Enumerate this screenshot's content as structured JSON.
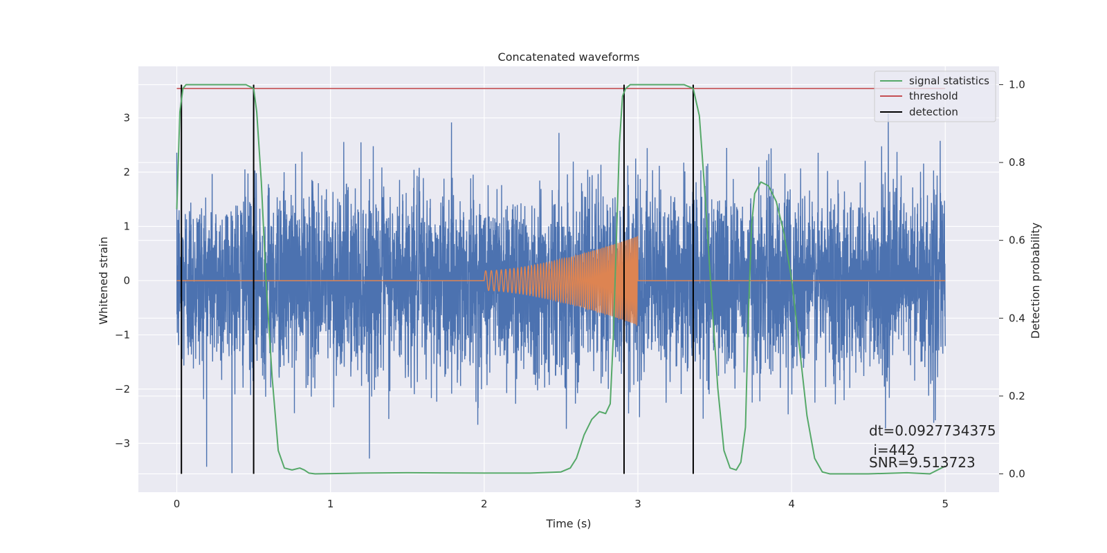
{
  "chart_data": {
    "type": "line",
    "title": "Concatenated waveforms",
    "xlabel": "Time (s)",
    "ylabel_left": "Whitened strain",
    "ylabel_right": "Detection probability",
    "xlim": [
      -0.25,
      5.35
    ],
    "ylim_left": [
      -3.9,
      3.95
    ],
    "ylim_right": [
      -0.047,
      1.047
    ],
    "xticks": [
      0,
      1,
      2,
      3,
      4,
      5
    ],
    "xtick_labels": [
      "0",
      "1",
      "2",
      "3",
      "4",
      "5"
    ],
    "yticks_left": [
      -3,
      -2,
      -1,
      0,
      1,
      2,
      3
    ],
    "ytick_labels_left": [
      "−3",
      "−2",
      "−1",
      "0",
      "1",
      "2",
      "3"
    ],
    "yticks_right": [
      0.0,
      0.2,
      0.4,
      0.6,
      0.8,
      1.0
    ],
    "ytick_labels_right": [
      "0.0",
      "0.2",
      "0.4",
      "0.6",
      "0.8",
      "1.0"
    ],
    "grid": true,
    "legend_position": "top-right",
    "legend": [
      "signal statistics",
      "threshold",
      "detection"
    ],
    "annotation_lines": [
      "dt=0.0927734375",
      " i=442",
      "SNR=9.513723"
    ],
    "series": [
      {
        "kind": "noise",
        "color": "#4c72b0",
        "axis": "left",
        "x_range": [
          0,
          5
        ],
        "typical_amplitude": 0.85,
        "peak_range": [
          -3.55,
          3.3
        ]
      },
      {
        "kind": "chirp",
        "color": "#dd8452",
        "axis": "left",
        "x_range": [
          0,
          5
        ],
        "chirp_start": 2.0,
        "chirp_end": 3.0,
        "start_amplitude": 0.18,
        "end_amplitude": 0.82,
        "start_frequency_hz": 25,
        "end_frequency_hz": 100
      },
      {
        "name": "signal statistics",
        "color": "#55a868",
        "axis": "right",
        "x": [
          0.0,
          0.02,
          0.04,
          0.06,
          0.1,
          0.45,
          0.5,
          0.52,
          0.55,
          0.58,
          0.62,
          0.66,
          0.7,
          0.75,
          0.8,
          0.83,
          0.86,
          0.9,
          1.2,
          1.5,
          2.0,
          2.3,
          2.5,
          2.56,
          2.6,
          2.65,
          2.7,
          2.75,
          2.79,
          2.82,
          2.84,
          2.86,
          2.88,
          2.9,
          2.92,
          2.95,
          3.0,
          3.3,
          3.36,
          3.4,
          3.44,
          3.48,
          3.52,
          3.56,
          3.6,
          3.64,
          3.67,
          3.7,
          3.72,
          3.74,
          3.76,
          3.8,
          3.85,
          3.9,
          3.95,
          4.0,
          4.05,
          4.1,
          4.15,
          4.2,
          4.25,
          4.5,
          4.75,
          4.9,
          5.0
        ],
        "y": [
          0.68,
          0.93,
          0.99,
          1.0,
          1.0,
          1.0,
          0.99,
          0.93,
          0.75,
          0.5,
          0.25,
          0.06,
          0.015,
          0.01,
          0.015,
          0.01,
          0.002,
          0.0,
          0.002,
          0.003,
          0.002,
          0.002,
          0.005,
          0.015,
          0.04,
          0.1,
          0.14,
          0.16,
          0.155,
          0.18,
          0.35,
          0.6,
          0.85,
          0.97,
          0.99,
          1.0,
          1.0,
          1.0,
          0.99,
          0.92,
          0.7,
          0.45,
          0.22,
          0.06,
          0.015,
          0.01,
          0.03,
          0.12,
          0.42,
          0.64,
          0.72,
          0.75,
          0.74,
          0.7,
          0.62,
          0.5,
          0.33,
          0.15,
          0.04,
          0.005,
          0.0,
          0.0,
          0.003,
          0.0,
          0.02
        ]
      },
      {
        "name": "threshold",
        "color": "#c44e52",
        "axis": "right",
        "x": [
          0.0,
          5.0
        ],
        "y": [
          0.99,
          0.99
        ]
      },
      {
        "name": "detection",
        "color": "#000000",
        "axis": "right",
        "vertical_lines_x": [
          0.03,
          0.5,
          2.91,
          3.36
        ],
        "y_range": [
          0.0,
          1.0
        ]
      }
    ]
  }
}
